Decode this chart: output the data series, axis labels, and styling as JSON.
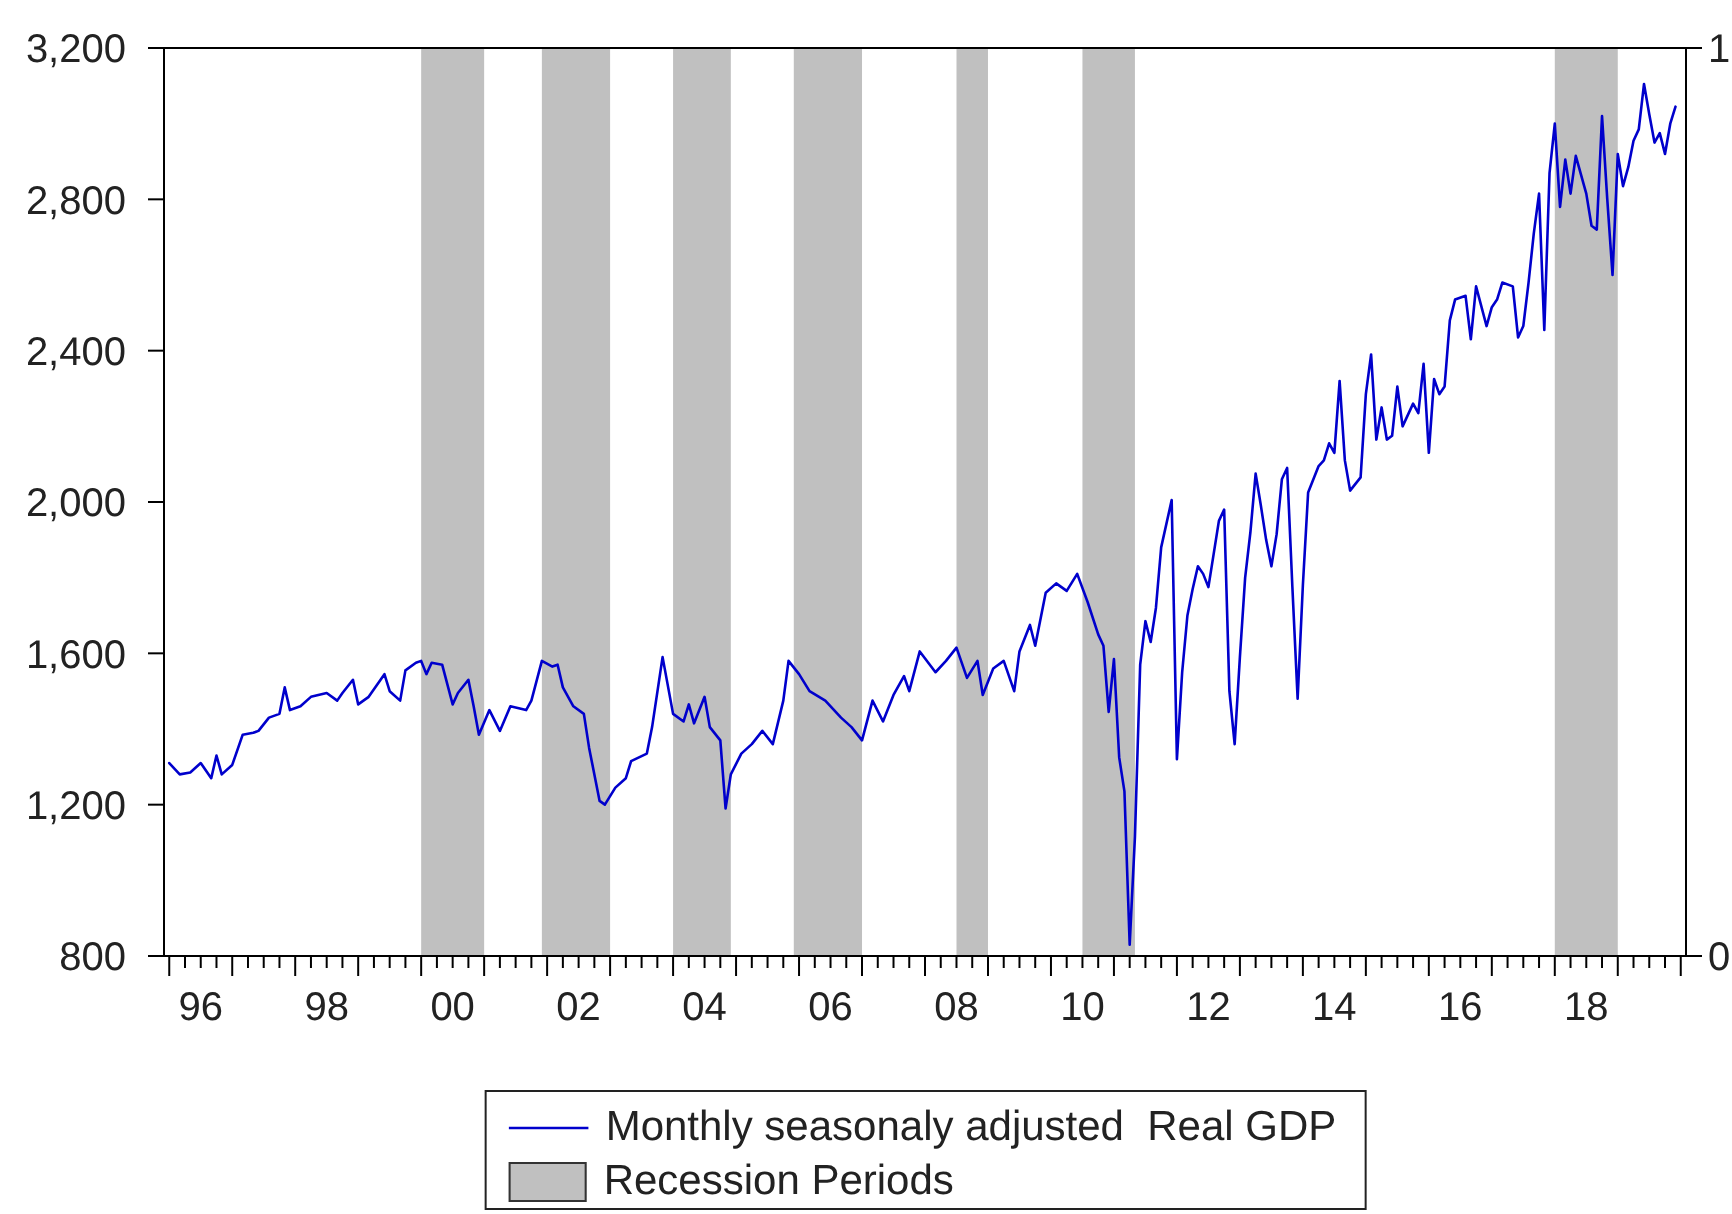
{
  "chart_data": {
    "type": "line",
    "xlim": [
      "1995-12",
      "2020-02"
    ],
    "xticks": [
      {
        "value": "1996-01",
        "label": null
      },
      {
        "value": "1996-04",
        "label": null
      },
      {
        "value": "1996-07",
        "label": "96"
      },
      {
        "value": "1996-10",
        "label": null
      },
      {
        "value": "1997-01",
        "label": null
      },
      {
        "value": "1997-04",
        "label": null
      },
      {
        "value": "1997-07",
        "label": null
      },
      {
        "value": "1997-10",
        "label": null
      },
      {
        "value": "1998-01",
        "label": null
      },
      {
        "value": "1998-04",
        "label": null
      },
      {
        "value": "1998-07",
        "label": "98"
      },
      {
        "value": "1998-10",
        "label": null
      },
      {
        "value": "1999-01",
        "label": null
      },
      {
        "value": "1999-04",
        "label": null
      },
      {
        "value": "1999-07",
        "label": null
      },
      {
        "value": "1999-10",
        "label": null
      },
      {
        "value": "2000-01",
        "label": null
      },
      {
        "value": "2000-04",
        "label": null
      },
      {
        "value": "2000-07",
        "label": "00"
      },
      {
        "value": "2000-10",
        "label": null
      },
      {
        "value": "2001-01",
        "label": null
      },
      {
        "value": "2001-04",
        "label": null
      },
      {
        "value": "2001-07",
        "label": null
      },
      {
        "value": "2001-10",
        "label": null
      },
      {
        "value": "2002-01",
        "label": null
      },
      {
        "value": "2002-04",
        "label": null
      },
      {
        "value": "2002-07",
        "label": "02"
      },
      {
        "value": "2002-10",
        "label": null
      },
      {
        "value": "2003-01",
        "label": null
      },
      {
        "value": "2003-04",
        "label": null
      },
      {
        "value": "2003-07",
        "label": null
      },
      {
        "value": "2003-10",
        "label": null
      },
      {
        "value": "2004-01",
        "label": null
      },
      {
        "value": "2004-04",
        "label": null
      },
      {
        "value": "2004-07",
        "label": "04"
      },
      {
        "value": "2004-10",
        "label": null
      },
      {
        "value": "2005-01",
        "label": null
      },
      {
        "value": "2005-04",
        "label": null
      },
      {
        "value": "2005-07",
        "label": null
      },
      {
        "value": "2005-10",
        "label": null
      },
      {
        "value": "2006-01",
        "label": null
      },
      {
        "value": "2006-04",
        "label": null
      },
      {
        "value": "2006-07",
        "label": "06"
      },
      {
        "value": "2006-10",
        "label": null
      },
      {
        "value": "2007-01",
        "label": null
      },
      {
        "value": "2007-04",
        "label": null
      },
      {
        "value": "2007-07",
        "label": null
      },
      {
        "value": "2007-10",
        "label": null
      },
      {
        "value": "2008-01",
        "label": null
      },
      {
        "value": "2008-04",
        "label": null
      },
      {
        "value": "2008-07",
        "label": "08"
      },
      {
        "value": "2008-10",
        "label": null
      },
      {
        "value": "2009-01",
        "label": null
      },
      {
        "value": "2009-04",
        "label": null
      },
      {
        "value": "2009-07",
        "label": null
      },
      {
        "value": "2009-10",
        "label": null
      },
      {
        "value": "2010-01",
        "label": null
      },
      {
        "value": "2010-04",
        "label": null
      },
      {
        "value": "2010-07",
        "label": "10"
      },
      {
        "value": "2010-10",
        "label": null
      },
      {
        "value": "2011-01",
        "label": null
      },
      {
        "value": "2011-04",
        "label": null
      },
      {
        "value": "2011-07",
        "label": null
      },
      {
        "value": "2011-10",
        "label": null
      },
      {
        "value": "2012-01",
        "label": null
      },
      {
        "value": "2012-04",
        "label": null
      },
      {
        "value": "2012-07",
        "label": "12"
      },
      {
        "value": "2012-10",
        "label": null
      },
      {
        "value": "2013-01",
        "label": null
      },
      {
        "value": "2013-04",
        "label": null
      },
      {
        "value": "2013-07",
        "label": null
      },
      {
        "value": "2013-10",
        "label": null
      },
      {
        "value": "2014-01",
        "label": null
      },
      {
        "value": "2014-04",
        "label": null
      },
      {
        "value": "2014-07",
        "label": "14"
      },
      {
        "value": "2014-10",
        "label": null
      },
      {
        "value": "2015-01",
        "label": null
      },
      {
        "value": "2015-04",
        "label": null
      },
      {
        "value": "2015-07",
        "label": null
      },
      {
        "value": "2015-10",
        "label": null
      },
      {
        "value": "2016-01",
        "label": null
      },
      {
        "value": "2016-04",
        "label": null
      },
      {
        "value": "2016-07",
        "label": "16"
      },
      {
        "value": "2016-10",
        "label": null
      },
      {
        "value": "2017-01",
        "label": null
      },
      {
        "value": "2017-04",
        "label": null
      },
      {
        "value": "2017-07",
        "label": null
      },
      {
        "value": "2017-10",
        "label": null
      },
      {
        "value": "2018-01",
        "label": null
      },
      {
        "value": "2018-04",
        "label": null
      },
      {
        "value": "2018-07",
        "label": "18"
      },
      {
        "value": "2018-10",
        "label": null
      },
      {
        "value": "2019-01",
        "label": null
      },
      {
        "value": "2019-04",
        "label": null
      },
      {
        "value": "2019-07",
        "label": null
      },
      {
        "value": "2019-10",
        "label": null
      },
      {
        "value": "2020-01",
        "label": null
      }
    ],
    "ylim": [
      800,
      3200
    ],
    "yticks": [
      800,
      {
        "value": 1200,
        "label": "1,200"
      },
      {
        "value": 1600,
        "label": "1,600"
      },
      {
        "value": 2000,
        "label": "2,000"
      },
      {
        "value": 2400,
        "label": "2,400"
      },
      {
        "value": 2800,
        "label": "2,800"
      },
      {
        "value": 3200,
        "label": "3,200"
      }
    ],
    "y2lim": [
      0,
      1
    ],
    "y2ticks": [
      0,
      1
    ],
    "legend": "bottom",
    "marker": "none",
    "series": [
      {
        "name": "Monthly seasonaly adjusted  Real GDP",
        "color": "#0000cc",
        "x": [
          "1996-01",
          "1996-03",
          "1996-05",
          "1996-07",
          "1996-09",
          "1996-10",
          "1996-11",
          "1997-01",
          "1997-03",
          "1997-05",
          "1997-06",
          "1997-08",
          "1997-10",
          "1997-11",
          "1997-12",
          "1998-02",
          "1998-04",
          "1998-07",
          "1998-09",
          "1998-10",
          "1998-12",
          "1999-01",
          "1999-03",
          "1999-06",
          "1999-07",
          "1999-09",
          "1999-10",
          "1999-12",
          "2000-01",
          "2000-02",
          "2000-03",
          "2000-05",
          "2000-07",
          "2000-08",
          "2000-10",
          "2000-11",
          "2000-12",
          "2001-02",
          "2001-04",
          "2001-06",
          "2001-09",
          "2001-10",
          "2001-12",
          "2002-02",
          "2002-03",
          "2002-04",
          "2002-06",
          "2002-08",
          "2002-09",
          "2002-11",
          "2002-12",
          "2003-02",
          "2003-04",
          "2003-05",
          "2003-08",
          "2003-09",
          "2003-11",
          "2004-01",
          "2004-03",
          "2004-04",
          "2004-05",
          "2004-07",
          "2004-08",
          "2004-10",
          "2004-11",
          "2004-12",
          "2005-02",
          "2005-04",
          "2005-06",
          "2005-08",
          "2005-10",
          "2005-11",
          "2006-01",
          "2006-03",
          "2006-06",
          "2006-09",
          "2006-11",
          "2007-01",
          "2007-03",
          "2007-05",
          "2007-07",
          "2007-09",
          "2007-10",
          "2007-12",
          "2008-03",
          "2008-05",
          "2008-07",
          "2008-09",
          "2008-11",
          "2008-12",
          "2009-02",
          "2009-04",
          "2009-06",
          "2009-07",
          "2009-09",
          "2009-10",
          "2009-12",
          "2010-02",
          "2010-04",
          "2010-06",
          "2010-08",
          "2010-10",
          "2010-11",
          "2010-12",
          "2011-01",
          "2011-02",
          "2011-03",
          "2011-04",
          "2011-05",
          "2011-06",
          "2011-07",
          "2011-08",
          "2011-09",
          "2011-10",
          "2011-12",
          "2012-01",
          "2012-02",
          "2012-03",
          "2012-04",
          "2012-05",
          "2012-06",
          "2012-07",
          "2012-09",
          "2012-10",
          "2012-11",
          "2012-12",
          "2013-01",
          "2013-02",
          "2013-03",
          "2013-04",
          "2013-05",
          "2013-06",
          "2013-07",
          "2013-08",
          "2013-09",
          "2013-10",
          "2013-11",
          "2013-12",
          "2014-01",
          "2014-02",
          "2014-03",
          "2014-04",
          "2014-05",
          "2014-06",
          "2014-07",
          "2014-08",
          "2014-09",
          "2014-10",
          "2014-12",
          "2015-01",
          "2015-02",
          "2015-03",
          "2015-04",
          "2015-05",
          "2015-06",
          "2015-07",
          "2015-08",
          "2015-10",
          "2015-11",
          "2015-12",
          "2016-01",
          "2016-02",
          "2016-03",
          "2016-04",
          "2016-05",
          "2016-06",
          "2016-08",
          "2016-09",
          "2016-10",
          "2016-12",
          "2017-01",
          "2017-02",
          "2017-03",
          "2017-05",
          "2017-06",
          "2017-07",
          "2017-08",
          "2017-09",
          "2017-10",
          "2017-11",
          "2017-12",
          "2018-01",
          "2018-02",
          "2018-03",
          "2018-04",
          "2018-05",
          "2018-07",
          "2018-08",
          "2018-09",
          "2018-10",
          "2018-11",
          "2018-12",
          "2019-01",
          "2019-02",
          "2019-03",
          "2019-04",
          "2019-05",
          "2019-06",
          "2019-07",
          "2019-08",
          "2019-09",
          "2019-10",
          "2019-11",
          "2019-12"
        ],
        "values": [
          1310,
          1280,
          1285,
          1310,
          1270,
          1330,
          1280,
          1305,
          1385,
          1390,
          1395,
          1430,
          1440,
          1510,
          1450,
          1460,
          1485,
          1495,
          1475,
          1495,
          1530,
          1465,
          1485,
          1545,
          1500,
          1475,
          1555,
          1575,
          1580,
          1545,
          1575,
          1570,
          1465,
          1495,
          1530,
          1460,
          1385,
          1450,
          1395,
          1460,
          1450,
          1475,
          1580,
          1565,
          1570,
          1510,
          1460,
          1440,
          1350,
          1210,
          1200,
          1245,
          1270,
          1315,
          1335,
          1405,
          1590,
          1440,
          1420,
          1465,
          1415,
          1485,
          1405,
          1370,
          1190,
          1280,
          1335,
          1360,
          1395,
          1360,
          1475,
          1580,
          1545,
          1500,
          1475,
          1430,
          1405,
          1370,
          1475,
          1420,
          1490,
          1540,
          1500,
          1605,
          1550,
          1580,
          1615,
          1535,
          1580,
          1490,
          1560,
          1580,
          1500,
          1605,
          1675,
          1620,
          1760,
          1785,
          1765,
          1810,
          1735,
          1650,
          1620,
          1445,
          1585,
          1325,
          1235,
          830,
          1115,
          1570,
          1685,
          1630,
          1720,
          1880,
          2005,
          1320,
          1550,
          1700,
          1770,
          1830,
          1810,
          1775,
          1950,
          1980,
          1500,
          1360,
          1590,
          1800,
          1920,
          2075,
          1990,
          1900,
          1830,
          1915,
          2060,
          2090,
          1775,
          1480,
          1780,
          2025,
          2060,
          2095,
          2110,
          2155,
          2130,
          2320,
          2110,
          2030,
          2065,
          2285,
          2390,
          2165,
          2250,
          2165,
          2175,
          2305,
          2200,
          2260,
          2235,
          2365,
          2130,
          2325,
          2285,
          2305,
          2480,
          2535,
          2545,
          2430,
          2570,
          2465,
          2515,
          2535,
          2580,
          2570,
          2435,
          2465,
          2580,
          2710,
          2815,
          2455,
          2870,
          3000,
          2780,
          2905,
          2815,
          2915,
          2815,
          2730,
          2720,
          3020,
          2800,
          2600,
          2920,
          2835,
          2885,
          2955,
          2985,
          3105,
          3025,
          2950,
          2975,
          2920,
          3000,
          3045
        ]
      },
      {
        "name": "Recession Periods",
        "type": "area",
        "axis": "y2",
        "color": "#c0c0c0",
        "x": [
          "1996-01",
          "2000-01",
          "2000-01",
          "2001-01",
          "2001-01",
          "2001-12",
          "2001-12",
          "2003-01",
          "2003-01",
          "2004-01",
          "2004-01",
          "2004-12",
          "2004-12",
          "2005-12",
          "2005-12",
          "2007-01",
          "2007-01",
          "2008-07",
          "2008-07",
          "2009-01",
          "2009-01",
          "2010-07",
          "2010-07",
          "2011-05",
          "2011-05",
          "2018-01",
          "2018-01",
          "2019-01",
          "2019-01",
          "2020-01"
        ],
        "values": [
          0,
          0,
          1,
          1,
          0,
          0,
          1,
          1,
          0,
          0,
          1,
          1,
          0,
          0,
          1,
          1,
          0,
          0,
          1,
          1,
          0,
          0,
          1,
          1,
          0,
          0,
          1,
          1,
          0,
          0
        ]
      }
    ]
  }
}
